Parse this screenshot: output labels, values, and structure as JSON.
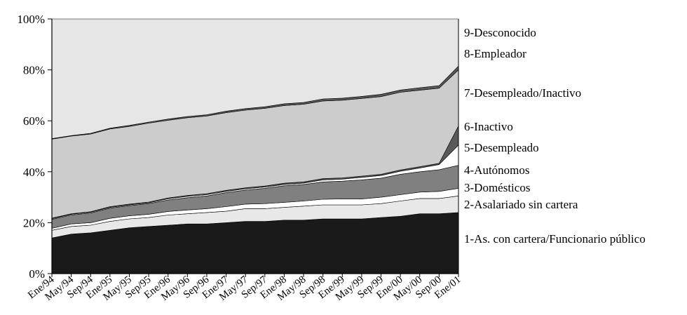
{
  "chart_data": {
    "type": "area",
    "stacked": true,
    "normalized": true,
    "y_tick_labels": [
      "0%",
      "20%",
      "40%",
      "60%",
      "80%",
      "100%"
    ],
    "ylim": [
      0,
      100
    ],
    "x_tick_labels": [
      "Ene/94",
      "May/94",
      "Sep/94",
      "Ene/95",
      "May/95",
      "Sep/95",
      "Ene/96",
      "May/96",
      "Sep/96",
      "Ene/97",
      "May/97",
      "Sep/97",
      "Ene/98",
      "May/98",
      "Sep/98",
      "Ene/99",
      "May/99",
      "Sep/99",
      "Ene/00",
      "May/00",
      "Sep/00",
      "Ene/01"
    ],
    "series": [
      {
        "name": "1-As. con cartera/Funcionario público",
        "color": "#1a1a1a",
        "values": [
          14.0,
          15.5,
          16.0,
          17.0,
          18.0,
          18.5,
          19.0,
          19.5,
          19.5,
          20.0,
          20.5,
          20.5,
          21.0,
          21.0,
          21.5,
          21.5,
          21.5,
          22.0,
          22.5,
          23.5,
          23.5,
          24.0
        ]
      },
      {
        "name": "2-Asalariado sin cartera",
        "color": "#e8e8e8",
        "values": [
          3.0,
          3.0,
          3.0,
          3.5,
          3.5,
          3.5,
          4.0,
          4.0,
          4.5,
          4.5,
          5.0,
          5.0,
          5.0,
          5.5,
          5.5,
          5.5,
          5.5,
          5.5,
          6.0,
          6.0,
          6.0,
          6.5
        ]
      },
      {
        "name": "3-Domésticos",
        "color": "#ffffff",
        "values": [
          0.8,
          1.0,
          1.0,
          1.2,
          1.2,
          1.3,
          1.4,
          1.5,
          1.5,
          1.8,
          1.8,
          2.0,
          2.0,
          2.0,
          2.2,
          2.3,
          2.3,
          2.5,
          2.5,
          2.5,
          2.8,
          3.0
        ]
      },
      {
        "name": "4-Autónomos",
        "color": "#808080",
        "values": [
          3.5,
          3.5,
          3.8,
          4.0,
          4.0,
          4.2,
          4.5,
          4.8,
          5.0,
          5.5,
          5.5,
          6.0,
          6.5,
          6.5,
          6.8,
          7.0,
          7.5,
          7.5,
          8.0,
          8.0,
          8.5,
          9.0
        ]
      },
      {
        "name": "5-Desempleado",
        "color": "#ffffff",
        "values": [
          0.3,
          0.3,
          0.3,
          0.3,
          0.3,
          0.3,
          0.5,
          0.5,
          0.5,
          0.5,
          0.5,
          0.5,
          0.5,
          0.5,
          0.8,
          0.8,
          1.0,
          1.0,
          1.2,
          1.5,
          2.0,
          8.0
        ]
      },
      {
        "name": "6-Inactivo",
        "color": "#595959",
        "values": [
          0.2,
          0.2,
          0.2,
          0.3,
          0.3,
          0.3,
          0.3,
          0.4,
          0.4,
          0.4,
          0.4,
          0.4,
          0.5,
          0.5,
          0.5,
          0.5,
          0.5,
          0.5,
          0.5,
          0.5,
          0.5,
          7.5
        ]
      },
      {
        "name": "7-Desempleado/Inactivo",
        "color": "#cccccc",
        "values": [
          31.0,
          30.5,
          30.5,
          30.5,
          30.5,
          31.0,
          30.5,
          30.5,
          30.5,
          30.5,
          30.5,
          30.5,
          30.5,
          30.5,
          30.5,
          30.5,
          30.5,
          30.5,
          30.5,
          30.0,
          29.5,
          22.0
        ]
      },
      {
        "name": "8-Empleador",
        "color": "#595959",
        "values": [
          0.2,
          0.2,
          0.3,
          0.3,
          0.4,
          0.4,
          0.5,
          0.5,
          0.5,
          0.6,
          0.6,
          0.6,
          0.7,
          0.7,
          0.8,
          0.8,
          0.8,
          0.9,
          0.9,
          1.0,
          1.0,
          1.5
        ]
      },
      {
        "name": "9-Desconocido",
        "color": "#e6e6e6",
        "values": [
          47.0,
          45.8,
          44.9,
          42.9,
          41.8,
          40.5,
          39.3,
          38.3,
          37.6,
          36.2,
          35.2,
          34.5,
          33.3,
          32.8,
          31.4,
          31.1,
          30.4,
          29.6,
          27.9,
          27.0,
          26.2,
          18.5
        ]
      }
    ]
  }
}
